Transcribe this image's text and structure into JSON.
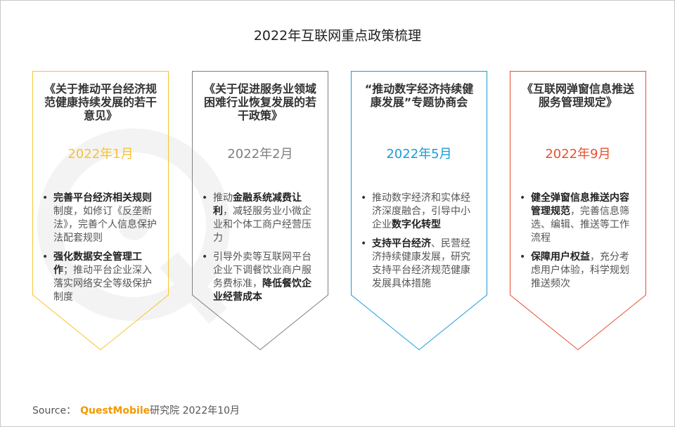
{
  "title": "2022年互联网重点政策梳理",
  "watermark": "QUESTMOBILE",
  "cards": [
    {
      "title": "《关于推动平台经济规范健康持续发展的若干意见》",
      "date": "2022年1月",
      "color": "#f9c22e",
      "bullets": [
        [
          {
            "t": "完善平台经济相关规则",
            "b": true
          },
          {
            "t": "制度，如修订《反垄断法》，完善个人信息保护法配套规则",
            "b": false
          }
        ],
        [
          {
            "t": "强化数据安全管理工作",
            "b": true
          },
          {
            "t": "；推动平台企业深入落实网络安全等级保护制度",
            "b": false
          }
        ]
      ]
    },
    {
      "title": "《关于促进服务业领域困难行业恢复发展的若干政策》",
      "date": "2022年2月",
      "color": "#7f7f7f",
      "bullets": [
        [
          {
            "t": "推动",
            "b": false
          },
          {
            "t": "金融系统减费让利",
            "b": true
          },
          {
            "t": "，减轻服务业小微企业和个体工商户经营压力",
            "b": false
          }
        ],
        [
          {
            "t": "引导外卖等互联网平台企业下调餐饮业商户服务费标准，",
            "b": false
          },
          {
            "t": "降低餐饮企业经营成本",
            "b": true
          }
        ]
      ]
    },
    {
      "title": "“推动数字经济持续健康发展”专题协商会",
      "date": "2022年5月",
      "color": "#1a9bd7",
      "bullets": [
        [
          {
            "t": "推动数字经济和实体经济深度融合，引导中小企业",
            "b": false
          },
          {
            "t": "数字化转型",
            "b": true
          }
        ],
        [
          {
            "t": "支持平台经济",
            "b": true
          },
          {
            "t": "、民营经济持续健康发展，研究支持平台经济规范健康发展具体措施",
            "b": false
          }
        ]
      ]
    },
    {
      "title": "《互联网弹窗信息推送服务管理规定》",
      "date": "2022年9月",
      "color": "#e8502f",
      "bullets": [
        [
          {
            "t": "健全弹窗信息推送内容管理规范",
            "b": true
          },
          {
            "t": "，完善信息筛选、编辑、推送等工作流程",
            "b": false
          }
        ],
        [
          {
            "t": "保障用户权益",
            "b": true
          },
          {
            "t": "，充分考虑用户体验，科学规划推送频次",
            "b": false
          }
        ]
      ]
    }
  ],
  "source": {
    "label": "Source：",
    "brand": "QuestMobile",
    "rest": "研究院 2022年10月"
  }
}
